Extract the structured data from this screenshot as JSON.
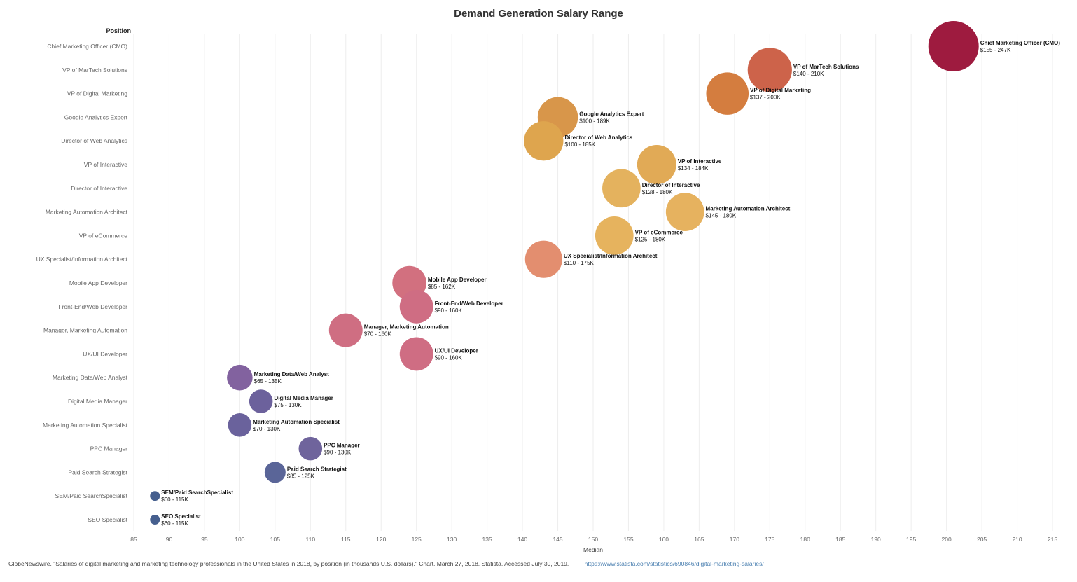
{
  "chart_data": {
    "type": "scatter",
    "subtype": "bubble",
    "title": "Demand Generation Salary Range",
    "ylabel": "Position",
    "xlabel": "Median",
    "xlim": [
      85,
      215
    ],
    "xticks": [
      85,
      90,
      95,
      100,
      105,
      110,
      115,
      120,
      125,
      130,
      135,
      140,
      145,
      150,
      155,
      160,
      165,
      170,
      175,
      180,
      185,
      190,
      195,
      200,
      205,
      210,
      215
    ],
    "grid": "vertical",
    "size_encoding": "max salary",
    "points": [
      {
        "position": "Chief Marketing Officer (CMO)",
        "median": 201,
        "min": 155,
        "max": 247,
        "label": "$155 - 247K",
        "color": "#9e1b3f"
      },
      {
        "position": "VP of MarTech Solutions",
        "median": 175,
        "min": 140,
        "max": 210,
        "label": "$140 - 210K",
        "color": "#cd634a"
      },
      {
        "position": "VP of Digital Marketing",
        "median": 169,
        "min": 137,
        "max": 200,
        "label": "$137 - 200K",
        "color": "#d47d3f"
      },
      {
        "position": "Google Analytics Expert",
        "median": 145,
        "min": 100,
        "max": 189,
        "label": "$100 - 189K",
        "color": "#d8964a"
      },
      {
        "position": "Director of Web Analytics",
        "median": 143,
        "min": 100,
        "max": 185,
        "label": "$100 - 185K",
        "color": "#dea54e"
      },
      {
        "position": "VP of Interactive",
        "median": 159,
        "min": 134,
        "max": 184,
        "label": "$134 - 184K",
        "color": "#e1aa56"
      },
      {
        "position": "Director of Interactive",
        "median": 154,
        "min": 128,
        "max": 180,
        "label": "$128 - 180K",
        "color": "#e4b25e"
      },
      {
        "position": "Marketing Automation Architect",
        "median": 163,
        "min": 145,
        "max": 180,
        "label": "$145 - 180K",
        "color": "#e6b25f"
      },
      {
        "position": "VP of eCommerce",
        "median": 153,
        "min": 125,
        "max": 180,
        "label": "$125 - 180K",
        "color": "#e6b35e"
      },
      {
        "position": "UX Specialist/Information Architect",
        "median": 143,
        "min": 110,
        "max": 175,
        "label": "$110 - 175K",
        "color": "#e38e6f"
      },
      {
        "position": "Mobile App Developer",
        "median": 124,
        "min": 85,
        "max": 162,
        "label": "$85 - 162K",
        "color": "#d2707f"
      },
      {
        "position": "Front-End/Web Developer",
        "median": 125,
        "min": 90,
        "max": 160,
        "label": "$90 - 160K",
        "color": "#cf6d83"
      },
      {
        "position": "Manager, Marketing Automation",
        "median": 115,
        "min": 70,
        "max": 160,
        "label": "$70 - 160K",
        "color": "#cf6e82"
      },
      {
        "position": "UX/UI Developer",
        "median": 125,
        "min": 90,
        "max": 160,
        "label": "$90 - 160K",
        "color": "#cf6d83"
      },
      {
        "position": "Marketing Data/Web Analyst",
        "median": 100,
        "min": 65,
        "max": 135,
        "label": "$65 - 135K",
        "color": "#82629f"
      },
      {
        "position": "Digital Media Manager",
        "median": 103,
        "min": 75,
        "max": 130,
        "label": "$75 - 130K",
        "color": "#6c619c"
      },
      {
        "position": "Marketing Automation Specialist",
        "median": 100,
        "min": 70,
        "max": 130,
        "label": "$70 - 130K",
        "color": "#6a629c"
      },
      {
        "position": "PPC Manager",
        "median": 110,
        "min": 90,
        "max": 130,
        "label": "$90 - 130K",
        "color": "#6f649c"
      },
      {
        "position": "Paid Search Strategist",
        "median": 105,
        "min": 85,
        "max": 125,
        "label": "$85 - 125K",
        "color": "#5a6598"
      },
      {
        "position": "SEM/Paid SearchSpecialist",
        "median": 88,
        "min": 60,
        "max": 115,
        "label": "$60 - 115K",
        "color": "#465f8e"
      },
      {
        "position": "SEO Specialist",
        "median": 88,
        "min": 60,
        "max": 115,
        "label": "$60 - 115K",
        "color": "#465f8e"
      }
    ]
  },
  "footer": {
    "source": "GlobeNewswire. \"Salaries of digital marketing and marketing technology professionals in the United States in 2018, by position (in thousands U.S. dollars).\" Chart. March 27, 2018. Statista. Accessed July 30, 2019.",
    "link": "https://www.statista.com/statistics/690846/digital-marketing-salaries/"
  }
}
